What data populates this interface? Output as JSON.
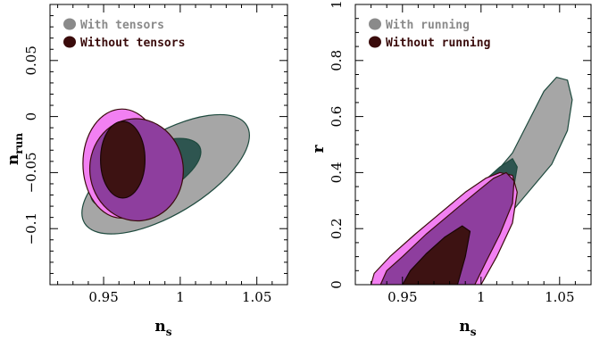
{
  "chart_data": [
    {
      "type": "contour",
      "xlabel": "n",
      "xlabel_sub": "s",
      "ylabel": "n",
      "ylabel_sub": "run",
      "xlim": [
        0.915,
        1.07
      ],
      "ylim": [
        -0.15,
        0.1
      ],
      "xticks": [
        0.95,
        1,
        1.05
      ],
      "xtick_labels": [
        "0.95",
        "1",
        "1.05"
      ],
      "yticks": [
        -0.1,
        -0.05,
        0,
        0.05
      ],
      "ytick_labels": [
        "−0.1",
        "−0.05",
        "0",
        "0.05"
      ],
      "legend": [
        {
          "label": "With tensors",
          "color": "#8a8a8a"
        },
        {
          "label": "Without tensors",
          "color": "#3a0b0b"
        }
      ],
      "legend_position": "top-left",
      "series": [
        {
          "name": "With tensors",
          "contours": [
            {
              "level": "95%",
              "color": "#a6a6a6",
              "stroke": "#1e4a3e",
              "center": [
                0.9905,
                -0.0515
              ],
              "semi_axes": [
                0.0618,
                0.0358
              ],
              "angle_deg": -31
            },
            {
              "level": "68%",
              "color": "#2e5550",
              "stroke": "#1e4a3e",
              "center": [
                0.9775,
                -0.0505
              ],
              "semi_axes": [
                0.0392,
                0.0225
              ],
              "angle_deg": -26
            }
          ]
        },
        {
          "name": "Without tensors",
          "contours": [
            {
              "level": "95%",
              "color": "#f280f2",
              "stroke": "#3a0b0b",
              "center": [
                0.962,
                -0.042
              ],
              "semi_axes": [
                0.0255,
                0.0487
              ],
              "angle_deg": 0
            },
            {
              "level": "68%",
              "color": "#3d1212",
              "stroke": "#1a0505",
              "center": [
                0.9625,
                -0.0385
              ],
              "semi_axes": [
                0.0145,
                0.0342
              ],
              "angle_deg": 0
            }
          ]
        },
        {
          "name": "overlap-purple",
          "contours": [
            {
              "level": "95%",
              "color": "#8e3e9e",
              "stroke": "#3a0b0b",
              "center": [
                0.9715,
                -0.0475
              ],
              "semi_axes": [
                0.0305,
                0.0456
              ],
              "angle_deg": -6
            }
          ]
        }
      ]
    },
    {
      "type": "contour",
      "xlabel": "n",
      "xlabel_sub": "s",
      "ylabel": "r",
      "xlim": [
        0.92,
        1.07
      ],
      "ylim": [
        0,
        1.0
      ],
      "xticks": [
        0.95,
        1,
        1.05
      ],
      "xtick_labels": [
        "0.95",
        "1",
        "1.05"
      ],
      "yticks": [
        0,
        0.2,
        0.4,
        0.6,
        0.8,
        1
      ],
      "ytick_labels": [
        "0",
        "0.2",
        "0.4",
        "0.6",
        "0.8",
        "1"
      ],
      "legend": [
        {
          "label": "With running",
          "color": "#8a8a8a"
        },
        {
          "label": "Without running",
          "color": "#3a0b0b"
        }
      ],
      "legend_position": "top-left",
      "series": [
        {
          "name": "With running",
          "contours": [
            {
              "level": "95%",
              "color": "#a6a6a6",
              "stroke": "#1e4a3e",
              "points": [
                [
                  0.935,
                  0
                ],
                [
                  0.948,
                  0.05
                ],
                [
                  0.965,
                  0.14
                ],
                [
                  0.985,
                  0.25
                ],
                [
                  1.005,
                  0.37
                ],
                [
                  1.02,
                  0.47
                ],
                [
                  1.03,
                  0.58
                ],
                [
                  1.04,
                  0.69
                ],
                [
                  1.048,
                  0.74
                ],
                [
                  1.055,
                  0.73
                ],
                [
                  1.058,
                  0.66
                ],
                [
                  1.055,
                  0.55
                ],
                [
                  1.045,
                  0.43
                ],
                [
                  1.03,
                  0.33
                ],
                [
                  1.015,
                  0.23
                ],
                [
                  0.998,
                  0.12
                ],
                [
                  0.985,
                  0
                ]
              ]
            },
            {
              "level": "68%",
              "color": "#2e5550",
              "stroke": "#1e4a3e",
              "points": [
                [
                  0.97,
                  0.18
                ],
                [
                  0.985,
                  0.28
                ],
                [
                  1.0,
                  0.36
                ],
                [
                  1.012,
                  0.42
                ],
                [
                  1.02,
                  0.45
                ],
                [
                  1.023,
                  0.42
                ],
                [
                  1.02,
                  0.32
                ],
                [
                  1.012,
                  0.22
                ],
                [
                  1.0,
                  0.14
                ],
                [
                  0.985,
                  0.08
                ]
              ]
            }
          ]
        },
        {
          "name": "Without running",
          "contours": [
            {
              "level": "95%",
              "color": "#f280f2",
              "stroke": "#3a0b0b",
              "points": [
                [
                  0.93,
                  0
                ],
                [
                  0.932,
                  0.04
                ],
                [
                  0.942,
                  0.1
                ],
                [
                  0.958,
                  0.18
                ],
                [
                  0.975,
                  0.26
                ],
                [
                  0.99,
                  0.33
                ],
                [
                  1.003,
                  0.38
                ],
                [
                  1.012,
                  0.4
                ],
                [
                  1.02,
                  0.39
                ],
                [
                  1.023,
                  0.33
                ],
                [
                  1.02,
                  0.22
                ],
                [
                  1.01,
                  0.1
                ],
                [
                  1.0,
                  0
                ]
              ]
            },
            {
              "level": "68%",
              "color": "#3d1212",
              "stroke": "#1a0505",
              "points": [
                [
                  0.95,
                  0
                ],
                [
                  0.955,
                  0.05
                ],
                [
                  0.965,
                  0.11
                ],
                [
                  0.977,
                  0.17
                ],
                [
                  0.988,
                  0.21
                ],
                [
                  0.993,
                  0.19
                ],
                [
                  0.99,
                  0.1
                ],
                [
                  0.985,
                  0
                ]
              ]
            }
          ]
        },
        {
          "name": "overlap-purple",
          "contours": [
            {
              "level": "95%",
              "color": "#8e3e9e",
              "stroke": "#3a0b0b",
              "points": [
                [
                  0.936,
                  0
                ],
                [
                  0.94,
                  0.05
                ],
                [
                  0.95,
                  0.1
                ],
                [
                  0.965,
                  0.18
                ],
                [
                  0.982,
                  0.26
                ],
                [
                  0.997,
                  0.33
                ],
                [
                  1.008,
                  0.38
                ],
                [
                  1.016,
                  0.4
                ],
                [
                  1.021,
                  0.37
                ],
                [
                  1.02,
                  0.29
                ],
                [
                  1.012,
                  0.18
                ],
                [
                  1.003,
                  0.08
                ],
                [
                  0.996,
                  0
                ]
              ]
            }
          ]
        }
      ]
    }
  ]
}
